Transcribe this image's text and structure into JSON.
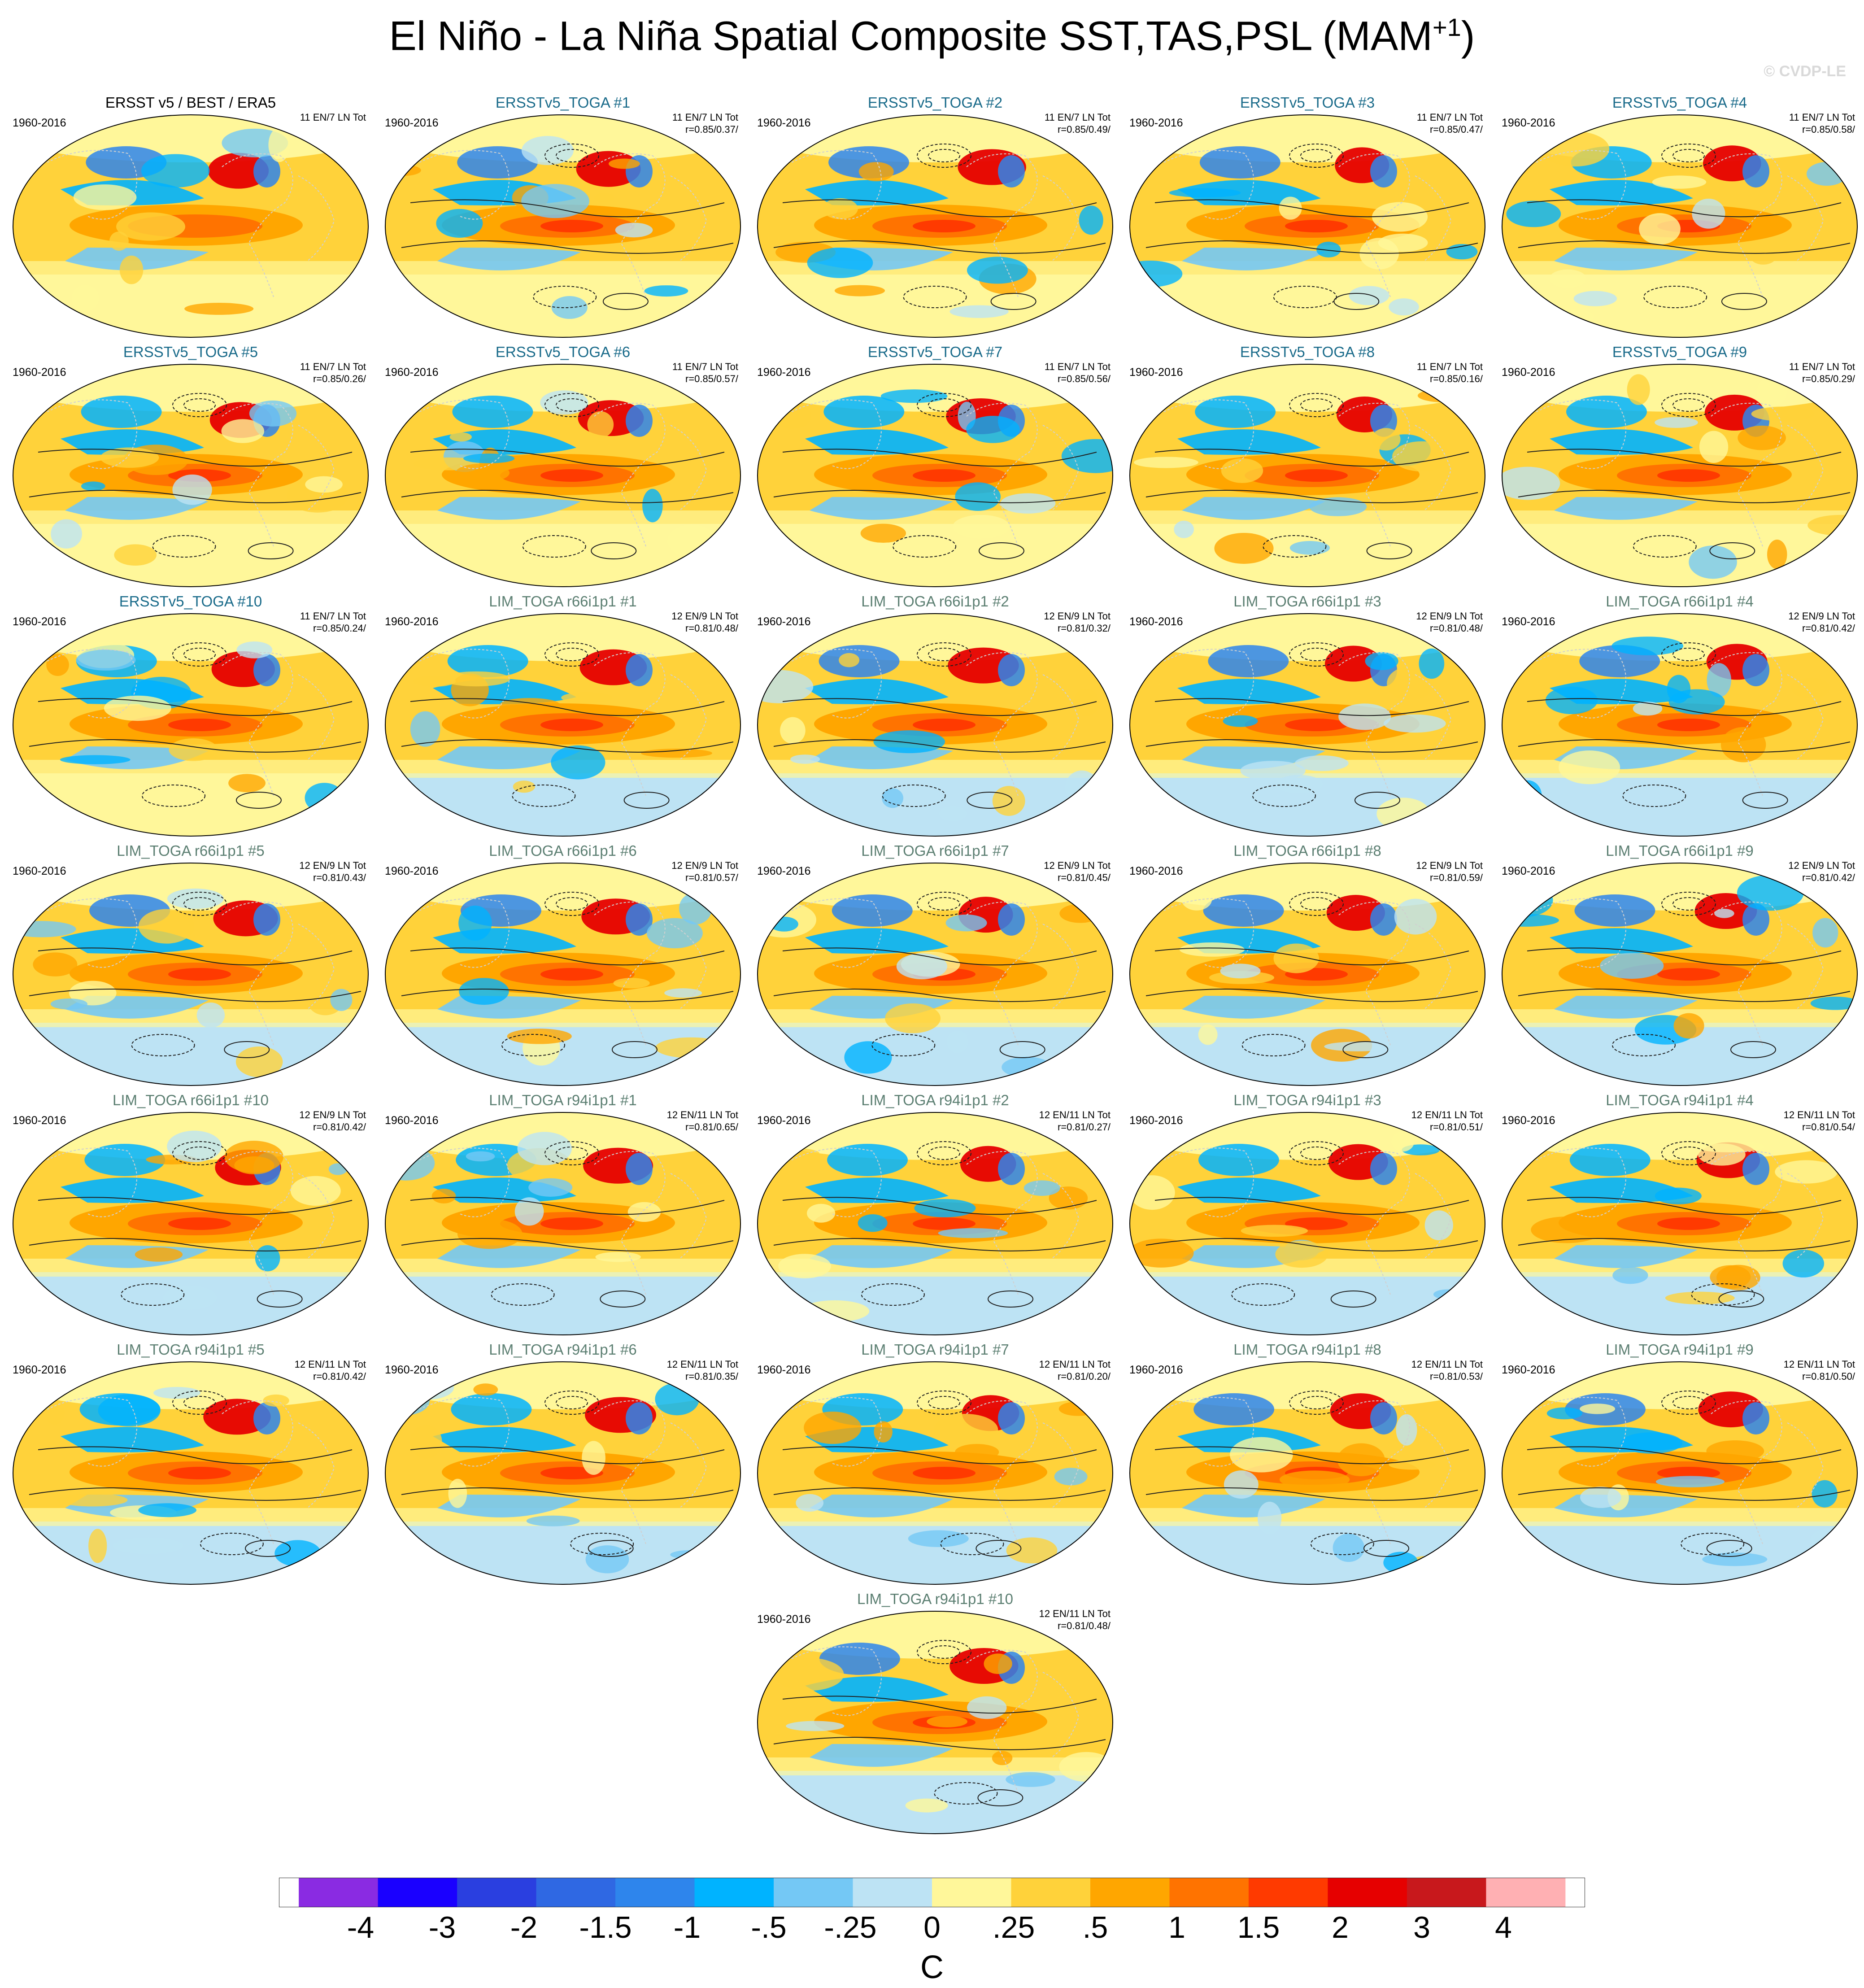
{
  "title_main": "El Niño - La Niña Spatial Composite SST,TAS,PSL (MAM",
  "title_sup": "+1",
  "title_end": ")",
  "watermark": "© CVDP-LE",
  "colors": {
    "obs_title": "#000000",
    "ersst_title": "#1a6b8a",
    "lim_title": "#5c7f72",
    "psl_contour": "#1f1f1f",
    "coast": "#d0d0d0"
  },
  "chart_data": {
    "type": "map-composite-grid",
    "variables": "SST,TAS,PSL",
    "season": "MAM+1",
    "colorbar": {
      "unit": "C",
      "boundaries": [
        "-4",
        "-3",
        "-2",
        "-1.5",
        "-1",
        "-.5",
        "-.25",
        "0",
        ".25",
        ".5",
        "1",
        "1.5",
        "2",
        "3",
        "4"
      ],
      "colors": [
        "#8a2be2",
        "#1a00ff",
        "#2a3fe0",
        "#2f68e3",
        "#2e85ec",
        "#00b3ff",
        "#74c8f5",
        "#bde3f4",
        "#fff79a",
        "#ffd23a",
        "#ffa600",
        "#ff7300",
        "#ff3a00",
        "#e60000",
        "#c8181c",
        "#ffb0b3"
      ]
    },
    "panels": [
      {
        "title": "ERSST v5 / BEST / ERA5",
        "period": "1960-2016",
        "stats1": "11 EN/7 LN Tot",
        "stats2": "",
        "kind": "obs"
      },
      {
        "title": "ERSSTv5_TOGA #1",
        "period": "1960-2016",
        "stats1": "11 EN/7 LN Tot",
        "stats2": "r=0.85/0.37/",
        "kind": "ersst"
      },
      {
        "title": "ERSSTv5_TOGA #2",
        "period": "1960-2016",
        "stats1": "11 EN/7 LN Tot",
        "stats2": "r=0.85/0.49/",
        "kind": "ersst"
      },
      {
        "title": "ERSSTv5_TOGA #3",
        "period": "1960-2016",
        "stats1": "11 EN/7 LN Tot",
        "stats2": "r=0.85/0.47/",
        "kind": "ersst"
      },
      {
        "title": "ERSSTv5_TOGA #4",
        "period": "1960-2016",
        "stats1": "11 EN/7 LN Tot",
        "stats2": "r=0.85/0.58/",
        "kind": "ersst"
      },
      {
        "title": "ERSSTv5_TOGA #5",
        "period": "1960-2016",
        "stats1": "11 EN/7 LN Tot",
        "stats2": "r=0.85/0.26/",
        "kind": "ersst"
      },
      {
        "title": "ERSSTv5_TOGA #6",
        "period": "1960-2016",
        "stats1": "11 EN/7 LN Tot",
        "stats2": "r=0.85/0.57/",
        "kind": "ersst"
      },
      {
        "title": "ERSSTv5_TOGA #7",
        "period": "1960-2016",
        "stats1": "11 EN/7 LN Tot",
        "stats2": "r=0.85/0.56/",
        "kind": "ersst"
      },
      {
        "title": "ERSSTv5_TOGA #8",
        "period": "1960-2016",
        "stats1": "11 EN/7 LN Tot",
        "stats2": "r=0.85/0.16/",
        "kind": "ersst"
      },
      {
        "title": "ERSSTv5_TOGA #9",
        "period": "1960-2016",
        "stats1": "11 EN/7 LN Tot",
        "stats2": "r=0.85/0.29/",
        "kind": "ersst"
      },
      {
        "title": "ERSSTv5_TOGA #10",
        "period": "1960-2016",
        "stats1": "11 EN/7 LN Tot",
        "stats2": "r=0.85/0.24/",
        "kind": "ersst"
      },
      {
        "title": "LIM_TOGA r66i1p1 #1",
        "period": "1960-2016",
        "stats1": "12 EN/9 LN Tot",
        "stats2": "r=0.81/0.48/",
        "kind": "lim"
      },
      {
        "title": "LIM_TOGA r66i1p1 #2",
        "period": "1960-2016",
        "stats1": "12 EN/9 LN Tot",
        "stats2": "r=0.81/0.32/",
        "kind": "lim"
      },
      {
        "title": "LIM_TOGA r66i1p1 #3",
        "period": "1960-2016",
        "stats1": "12 EN/9 LN Tot",
        "stats2": "r=0.81/0.48/",
        "kind": "lim"
      },
      {
        "title": "LIM_TOGA r66i1p1 #4",
        "period": "1960-2016",
        "stats1": "12 EN/9 LN Tot",
        "stats2": "r=0.81/0.42/",
        "kind": "lim"
      },
      {
        "title": "LIM_TOGA r66i1p1 #5",
        "period": "1960-2016",
        "stats1": "12 EN/9 LN Tot",
        "stats2": "r=0.81/0.43/",
        "kind": "lim"
      },
      {
        "title": "LIM_TOGA r66i1p1 #6",
        "period": "1960-2016",
        "stats1": "12 EN/9 LN Tot",
        "stats2": "r=0.81/0.57/",
        "kind": "lim"
      },
      {
        "title": "LIM_TOGA r66i1p1 #7",
        "period": "1960-2016",
        "stats1": "12 EN/9 LN Tot",
        "stats2": "r=0.81/0.45/",
        "kind": "lim"
      },
      {
        "title": "LIM_TOGA r66i1p1 #8",
        "period": "1960-2016",
        "stats1": "12 EN/9 LN Tot",
        "stats2": "r=0.81/0.59/",
        "kind": "lim"
      },
      {
        "title": "LIM_TOGA r66i1p1 #9",
        "period": "1960-2016",
        "stats1": "12 EN/9 LN Tot",
        "stats2": "r=0.81/0.42/",
        "kind": "lim"
      },
      {
        "title": "LIM_TOGA r66i1p1 #10",
        "period": "1960-2016",
        "stats1": "12 EN/9 LN Tot",
        "stats2": "r=0.81/0.42/",
        "kind": "lim"
      },
      {
        "title": "LIM_TOGA r94i1p1 #1",
        "period": "1960-2016",
        "stats1": "12 EN/11 LN Tot",
        "stats2": "r=0.81/0.65/",
        "kind": "lim"
      },
      {
        "title": "LIM_TOGA r94i1p1 #2",
        "period": "1960-2016",
        "stats1": "12 EN/11 LN Tot",
        "stats2": "r=0.81/0.27/",
        "kind": "lim"
      },
      {
        "title": "LIM_TOGA r94i1p1 #3",
        "period": "1960-2016",
        "stats1": "12 EN/11 LN Tot",
        "stats2": "r=0.81/0.51/",
        "kind": "lim"
      },
      {
        "title": "LIM_TOGA r94i1p1 #4",
        "period": "1960-2016",
        "stats1": "12 EN/11 LN Tot",
        "stats2": "r=0.81/0.54/",
        "kind": "lim"
      },
      {
        "title": "LIM_TOGA r94i1p1 #5",
        "period": "1960-2016",
        "stats1": "12 EN/11 LN Tot",
        "stats2": "r=0.81/0.42/",
        "kind": "lim"
      },
      {
        "title": "LIM_TOGA r94i1p1 #6",
        "period": "1960-2016",
        "stats1": "12 EN/11 LN Tot",
        "stats2": "r=0.81/0.35/",
        "kind": "lim"
      },
      {
        "title": "LIM_TOGA r94i1p1 #7",
        "period": "1960-2016",
        "stats1": "12 EN/11 LN Tot",
        "stats2": "r=0.81/0.20/",
        "kind": "lim"
      },
      {
        "title": "LIM_TOGA r94i1p1 #8",
        "period": "1960-2016",
        "stats1": "12 EN/11 LN Tot",
        "stats2": "r=0.81/0.53/",
        "kind": "lim"
      },
      {
        "title": "LIM_TOGA r94i1p1 #9",
        "period": "1960-2016",
        "stats1": "12 EN/11 LN Tot",
        "stats2": "r=0.81/0.50/",
        "kind": "lim"
      },
      {
        "title": "LIM_TOGA r94i1p1 #10",
        "period": "1960-2016",
        "stats1": "12 EN/11 LN Tot",
        "stats2": "r=0.81/0.48/",
        "kind": "lim"
      }
    ]
  }
}
